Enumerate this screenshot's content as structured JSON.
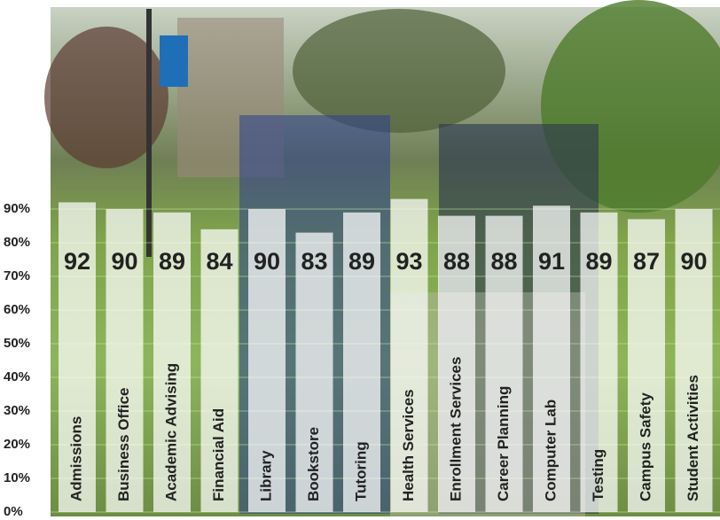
{
  "chart_data": {
    "type": "bar",
    "categories": [
      "Admissions",
      "Business Office",
      "Academic Advising",
      "Financial Aid",
      "Library",
      "Bookstore",
      "Tutoring",
      "Health Services",
      "Enrollment Services",
      "Career Planning",
      "Computer Lab",
      "Testing",
      "Campus Safety",
      "Student Activities"
    ],
    "values": [
      92,
      90,
      89,
      84,
      90,
      83,
      89,
      93,
      88,
      88,
      91,
      89,
      87,
      90
    ],
    "color": "#ffffff",
    "ylim": [
      0,
      150
    ],
    "yticks": [
      {
        "value": 0,
        "label": "0%"
      },
      {
        "value": 10,
        "label": "10%"
      },
      {
        "value": 20,
        "label": "20%"
      },
      {
        "value": 30,
        "label": "30%"
      },
      {
        "value": 40,
        "label": "40%"
      },
      {
        "value": 50,
        "label": "50%"
      },
      {
        "value": 60,
        "label": "60%"
      },
      {
        "value": 70,
        "label": "70%"
      },
      {
        "value": 80,
        "label": "80%"
      },
      {
        "value": 90,
        "label": "90%"
      }
    ],
    "grid": true
  }
}
